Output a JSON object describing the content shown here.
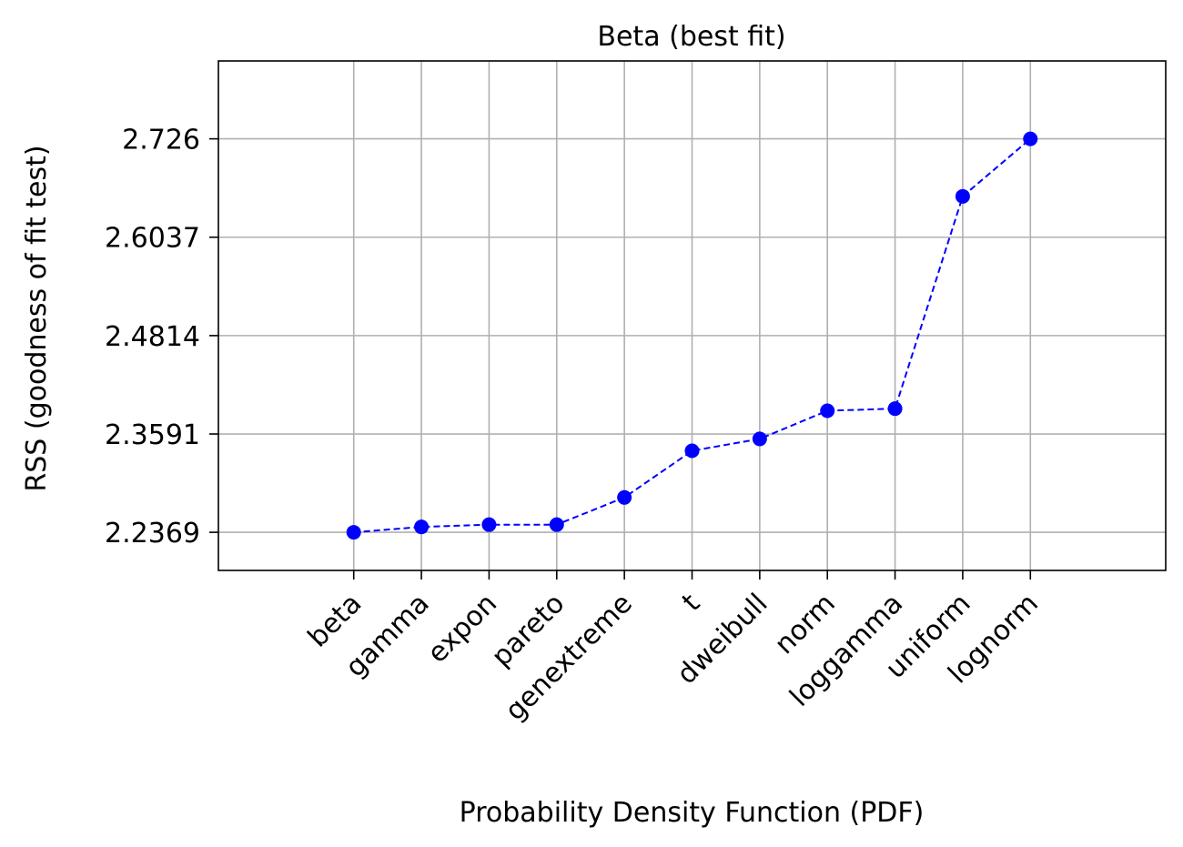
{
  "chart_data": {
    "type": "line",
    "title": "Beta (best fit)",
    "xlabel": "Probability Density Function (PDF)",
    "ylabel": "RSS (goodness of fit test)",
    "categories": [
      "beta",
      "gamma",
      "expon",
      "pareto",
      "genextreme",
      "t",
      "dweibull",
      "norm",
      "loggamma",
      "uniform",
      "lognorm"
    ],
    "values": [
      2.2369,
      2.2436,
      2.2464,
      2.2464,
      2.2802,
      2.3382,
      2.353,
      2.388,
      2.3906,
      2.6545,
      2.726
    ],
    "yticks": [
      "2.2369",
      "2.3591",
      "2.4814",
      "2.6037",
      "2.726"
    ],
    "ylim": [
      2.1895,
      2.8228
    ],
    "xlim": [
      -2,
      12
    ],
    "grid": true,
    "legend": "none",
    "marker": "circle",
    "line_style": "dashed",
    "color": "#0000ff"
  }
}
